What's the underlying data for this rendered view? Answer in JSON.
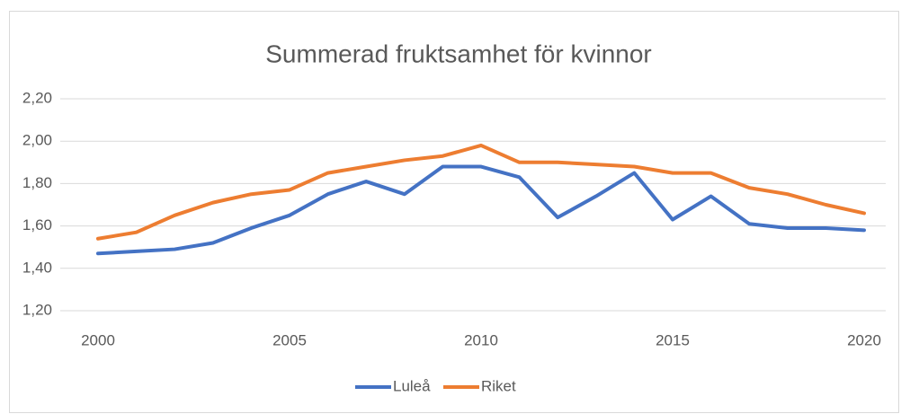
{
  "chart_data": {
    "type": "line",
    "title": "Summerad fruktsamhet för kvinnor",
    "x": [
      2000,
      2001,
      2002,
      2003,
      2004,
      2005,
      2006,
      2007,
      2008,
      2009,
      2010,
      2011,
      2012,
      2013,
      2014,
      2015,
      2016,
      2017,
      2018,
      2019,
      2020
    ],
    "series": [
      {
        "name": "Luleå",
        "color": "#4472c4",
        "values": [
          1.47,
          1.48,
          1.49,
          1.52,
          1.59,
          1.65,
          1.75,
          1.81,
          1.75,
          1.88,
          1.88,
          1.83,
          1.64,
          1.74,
          1.85,
          1.63,
          1.74,
          1.61,
          1.59,
          1.59,
          1.58
        ]
      },
      {
        "name": "Riket",
        "color": "#ed7d31",
        "values": [
          1.54,
          1.57,
          1.65,
          1.71,
          1.75,
          1.77,
          1.85,
          1.88,
          1.91,
          1.93,
          1.98,
          1.9,
          1.9,
          1.89,
          1.88,
          1.85,
          1.85,
          1.78,
          1.75,
          1.7,
          1.66
        ]
      }
    ],
    "xlim": [
      2000,
      2020
    ],
    "xticks": [
      2000,
      2005,
      2010,
      2015,
      2020
    ],
    "ylim": [
      1.2,
      2.2
    ],
    "yticks": [
      {
        "value": 1.2,
        "label": "1,20"
      },
      {
        "value": 1.4,
        "label": "1,40"
      },
      {
        "value": 1.6,
        "label": "1,60"
      },
      {
        "value": 1.8,
        "label": "1,80"
      },
      {
        "value": 2.0,
        "label": "2,00"
      },
      {
        "value": 2.2,
        "label": "2,20"
      }
    ],
    "grid": true,
    "legend": "bottom"
  }
}
